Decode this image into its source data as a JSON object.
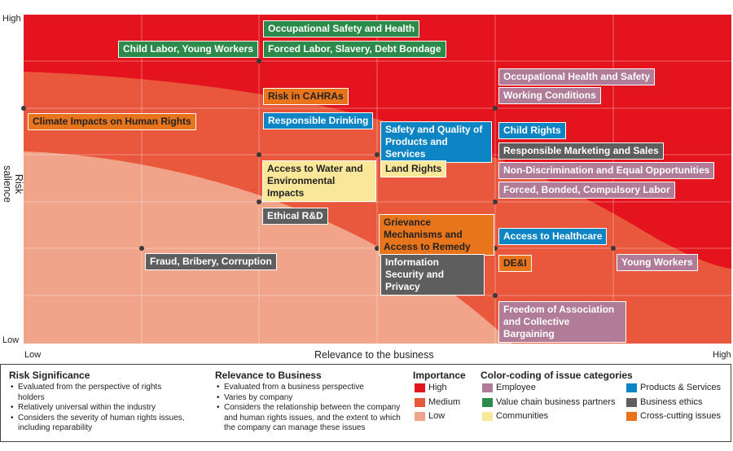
{
  "chart_data": {
    "type": "matrix",
    "xlabel": "Relevance to the business",
    "ylabel": "Risk salience",
    "x_ticks": {
      "low": "Low",
      "high": "High"
    },
    "y_ticks": {
      "low": "Low",
      "high": "High"
    },
    "xlim": [
      0,
      6
    ],
    "ylim": [
      0,
      7
    ],
    "grid": true,
    "bands": [
      {
        "level": "high",
        "color": "#e4141e"
      },
      {
        "level": "medium",
        "color": "#e9573c"
      },
      {
        "level": "low",
        "color": "#f0a48a"
      }
    ],
    "points": [
      {
        "x": 2,
        "y": 6,
        "labels": [
          {
            "text": "Occupational Safety and Health",
            "category": "value_chain"
          },
          {
            "text": "Forced Labor, Slavery, Debt Bondage",
            "category": "value_chain"
          },
          {
            "text": "Child Labor, Young Workers",
            "category": "value_chain"
          }
        ]
      },
      {
        "x": 0,
        "y": 5,
        "labels": [
          {
            "text": "Climate Impacts on Human Rights",
            "category": "cross_cutting"
          }
        ]
      },
      {
        "x": 2,
        "y": 4,
        "labels": [
          {
            "text": "Risk in CAHRAs",
            "category": "cross_cutting"
          },
          {
            "text": "Responsible Drinking",
            "category": "products"
          },
          {
            "text": "Access to Water and Environmental Impacts",
            "category": "communities"
          }
        ]
      },
      {
        "x": 2,
        "y": 3,
        "labels": [
          {
            "text": "Ethical R&D",
            "category": "business_ethics"
          }
        ]
      },
      {
        "x": 3,
        "y": 4,
        "labels": [
          {
            "text": "Safety and Quality of Products and Services",
            "category": "products"
          },
          {
            "text": "Land Rights",
            "category": "communities"
          }
        ]
      },
      {
        "x": 3,
        "y": 2,
        "labels": [
          {
            "text": "Grievance Mechanisms and Access to Remedy",
            "category": "cross_cutting"
          },
          {
            "text": "Information Security and Privacy",
            "category": "business_ethics"
          }
        ]
      },
      {
        "x": 1,
        "y": 2,
        "labels": [
          {
            "text": "Fraud, Bribery, Corruption",
            "category": "business_ethics"
          }
        ]
      },
      {
        "x": 4,
        "y": 5,
        "labels": [
          {
            "text": "Occupational Health and Safety",
            "category": "employee"
          },
          {
            "text": "Working Conditions",
            "category": "employee"
          },
          {
            "text": "Child Rights",
            "category": "products"
          },
          {
            "text": "Responsible Marketing and Sales",
            "category": "business_ethics"
          },
          {
            "text": "Non-Discrimination and Equal Opportunities",
            "category": "employee"
          }
        ]
      },
      {
        "x": 4,
        "y": 3,
        "labels": [
          {
            "text": "Forced, Bonded, Compulsory Labor",
            "category": "employee"
          }
        ]
      },
      {
        "x": 4,
        "y": 2,
        "labels": [
          {
            "text": "Access to Healthcare",
            "category": "products"
          },
          {
            "text": "DE&I",
            "category": "cross_cutting"
          }
        ]
      },
      {
        "x": 5,
        "y": 2,
        "labels": [
          {
            "text": "Young Workers",
            "category": "employee"
          }
        ]
      },
      {
        "x": 4,
        "y": 1,
        "labels": [
          {
            "text": "Freedom of Association and Collective Bargaining",
            "category": "employee"
          }
        ]
      }
    ]
  },
  "legend": {
    "risk_significance": {
      "title": "Risk Significance",
      "items": [
        "Evaluated from the perspective of rights holders",
        "Relatively universal within the industry",
        "Considers the severity of human rights issues, including reparability"
      ]
    },
    "relevance": {
      "title": "Relevance to Business",
      "items": [
        "Evaluated from a business perspective",
        "Varies by company",
        "Considers the relationship between the company and human rights issues, and the extent to which the company can manage these issues"
      ]
    },
    "importance": {
      "title": "Importance",
      "items": [
        {
          "label": "High",
          "color": "#e4141e"
        },
        {
          "label": "Medium",
          "color": "#e9573c"
        },
        {
          "label": "Low",
          "color": "#f0a48a"
        }
      ]
    },
    "categories": {
      "title": "Color-coding of issue categories",
      "items": [
        {
          "key": "employee",
          "label": "Employee",
          "color": "#b07c97"
        },
        {
          "key": "value_chain",
          "label": "Value chain business partners",
          "color": "#2c8b4b"
        },
        {
          "key": "communities",
          "label": "Communities",
          "color": "#fae89a"
        },
        {
          "key": "products",
          "label": "Products & Services",
          "color": "#0d85c4"
        },
        {
          "key": "business_ethics",
          "label": "Business ethics",
          "color": "#5e5e5e"
        },
        {
          "key": "cross_cutting",
          "label": "Cross-cutting issues",
          "color": "#e8741c"
        }
      ]
    }
  }
}
